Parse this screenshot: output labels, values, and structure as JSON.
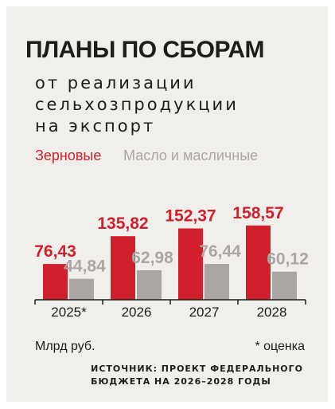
{
  "title": "ПЛАНЫ ПО СБОРАМ",
  "subtitle_lines": [
    "от реализации",
    "сельхозпродукции",
    "на экспорт"
  ],
  "unit_label": "Млрд руб.",
  "footnote": "* оценка",
  "source_lines": [
    "ИСТОЧНИК: ПРОЕКТ ФЕДЕРАЛЬНОГО",
    "БЮДЖЕТА НА 2026–2028 ГОДЫ"
  ],
  "colors": {
    "grain": "#d0202c",
    "oil": "#a9a6a3",
    "axis": "#1d1d1b",
    "background": "#f1efec"
  },
  "chart_data": {
    "type": "bar",
    "categories": [
      "2025*",
      "2026",
      "2027",
      "2028"
    ],
    "series": [
      {
        "name": "Зерновые",
        "values": [
          76.43,
          135.82,
          152.37,
          158.57
        ],
        "labels": [
          "76,43",
          "135,82",
          "152,37",
          "158,57"
        ]
      },
      {
        "name": "Масло и масличные",
        "values": [
          44.84,
          62.98,
          76.44,
          60.12
        ],
        "labels": [
          "44,84",
          "62,98",
          "76,44",
          "60,12"
        ]
      }
    ],
    "ylim": [
      0,
      160
    ]
  }
}
